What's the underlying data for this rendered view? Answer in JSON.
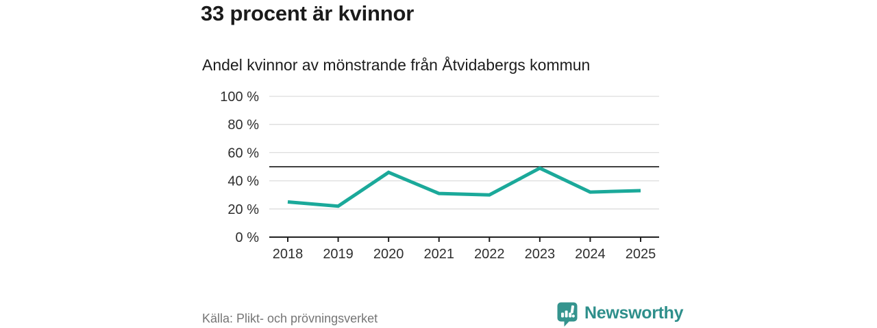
{
  "header": {
    "title": "33 procent är kvinnor",
    "subtitle": "Andel kvinnor av mönstrande från Åtvidabergs kommun"
  },
  "chart_data": {
    "type": "line",
    "title": "Andel kvinnor av mönstrande från Åtvidabergs kommun",
    "xlabel": "",
    "ylabel": "",
    "x": [
      2018,
      2019,
      2020,
      2021,
      2022,
      2023,
      2024,
      2025
    ],
    "series": [
      {
        "name": "Andel kvinnor",
        "values": [
          25,
          22,
          46,
          31,
          30,
          49,
          32,
          33
        ]
      }
    ],
    "ylim": [
      0,
      100
    ],
    "yticks": [
      0,
      20,
      40,
      60,
      80,
      100
    ],
    "ytick_suffix": " %",
    "reference_line_y": 50,
    "grid": true,
    "legend": false
  },
  "colors": {
    "line": "#1ba99a",
    "reference": "#3f3f3f",
    "grid": "#dcdcdc",
    "axis": "#1f1f1f",
    "tick_label": "#2e2e2e",
    "brand": "#2e8f8b",
    "brand_icon": "#35948e"
  },
  "footer": {
    "source": "Källa: Plikt- och prövningsverket",
    "brand": "Newsworthy"
  },
  "icons": {
    "brand_logo": "newsworthy-speech-bubble-bar-chart-icon"
  }
}
